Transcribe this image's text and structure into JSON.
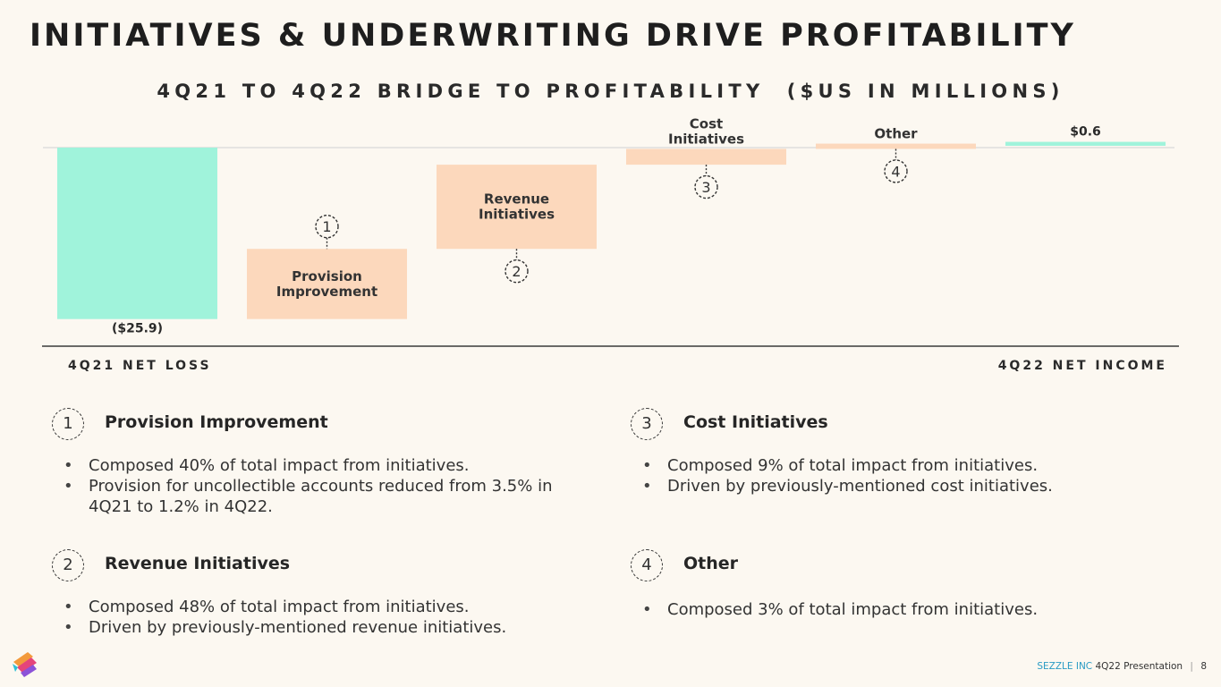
{
  "page": {
    "title": "INITIATIVES & UNDERWRITING DRIVE PROFITABILITY"
  },
  "colors": {
    "teal": "#a0f3db",
    "peach": "#fcd8bc",
    "baseline": "#3a3a3a",
    "top_line": "#dedede"
  },
  "chart_data": {
    "type": "waterfall",
    "title": "4Q21 TO 4Q22 BRIDGE TO PROFITABILITY  ($US IN MILLIONS)",
    "units": "$US in millions",
    "start_value": -25.9,
    "end_value": 0.6,
    "start_label": "($25.9)",
    "end_label": "$0.6",
    "steps": [
      {
        "name": "Provision Improvement",
        "badge": "1",
        "impact_share_pct": 40
      },
      {
        "name": "Revenue Initiatives",
        "badge": "2",
        "impact_share_pct": 48
      },
      {
        "name": "Cost Initiatives",
        "badge": "3",
        "impact_share_pct": 9
      },
      {
        "name": "Other",
        "badge": "4",
        "impact_share_pct": 3
      }
    ],
    "bar_labels": [
      [
        "Provision",
        "Improvement"
      ],
      [
        "Revenue",
        "Initiatives"
      ],
      [
        "Cost",
        "Initiatives"
      ],
      [
        "Other"
      ]
    ],
    "category_start": "4Q21 NET LOSS",
    "category_end": "4Q22 NET INCOME"
  },
  "sections": [
    {
      "badge": "1",
      "title": "Provision Improvement",
      "bullets": [
        "Composed 40% of total impact from initiatives.",
        "Provision for uncollectible accounts reduced from 3.5% in 4Q21 to 1.2% in 4Q22."
      ]
    },
    {
      "badge": "2",
      "title": "Revenue Initiatives",
      "bullets": [
        "Composed 48% of total impact from initiatives.",
        "Driven by previously-mentioned revenue initiatives."
      ]
    },
    {
      "badge": "3",
      "title": "Cost Initiatives",
      "bullets": [
        "Composed 9% of total impact from initiatives.",
        "Driven by previously-mentioned cost initiatives."
      ]
    },
    {
      "badge": "4",
      "title": "Other",
      "bullets": [
        "Composed 3% of total impact from initiatives."
      ]
    }
  ],
  "footer": {
    "company": "SEZZLE INC",
    "presentation": "4Q22 Presentation",
    "separator": "|",
    "page_number": "8"
  },
  "logo": {
    "icon": "sezzle-logo-icon"
  }
}
